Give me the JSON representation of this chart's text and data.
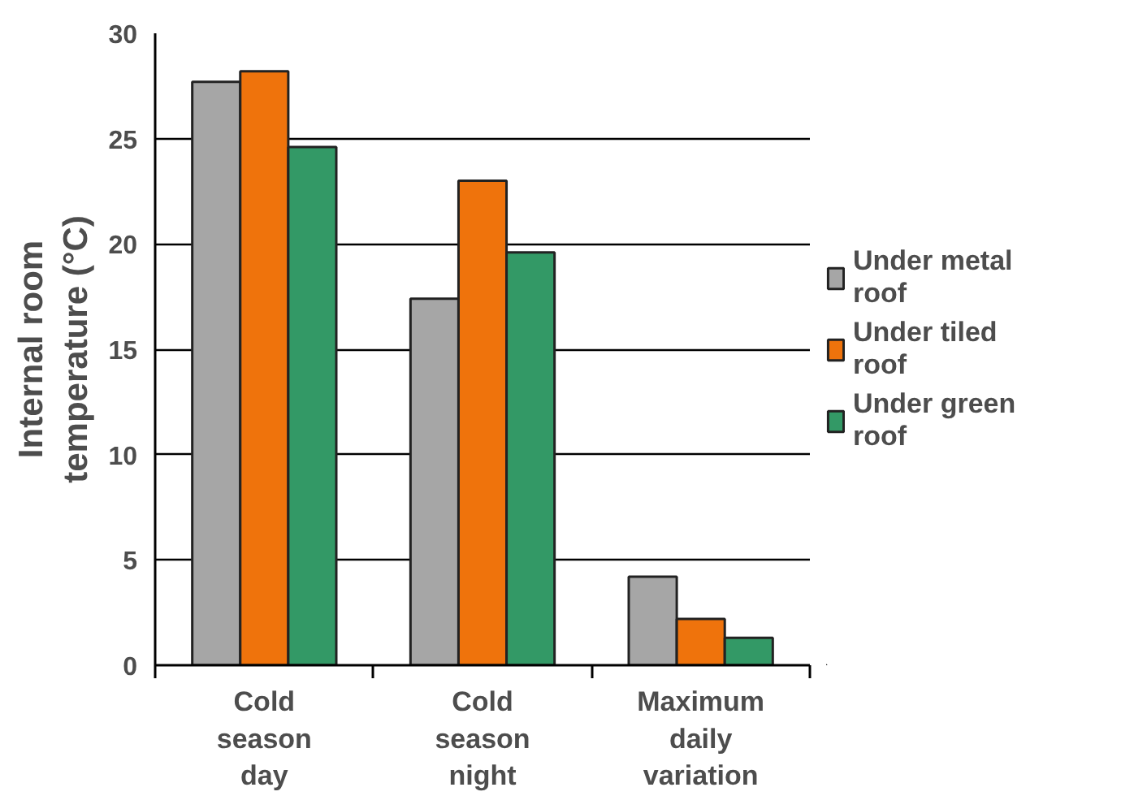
{
  "chart_data": {
    "type": "bar",
    "ylabel": "Internal room temperature (°C)",
    "categories": [
      "Cold season day",
      "Cold season night",
      "Maximum daily variation"
    ],
    "series": [
      {
        "name": "Under metal roof",
        "color": "#a6a6a6",
        "values": [
          27.7,
          17.4,
          4.2
        ]
      },
      {
        "name": "Under tiled roof",
        "color": "#ef730c",
        "values": [
          28.2,
          23.0,
          2.2
        ]
      },
      {
        "name": "Under green roof",
        "color": "#339966",
        "values": [
          24.6,
          19.6,
          1.3
        ]
      }
    ],
    "ylim": [
      0,
      30
    ],
    "yticks": [
      0,
      5,
      10,
      15,
      20,
      25,
      30
    ],
    "grid": "y",
    "legend": "right"
  }
}
